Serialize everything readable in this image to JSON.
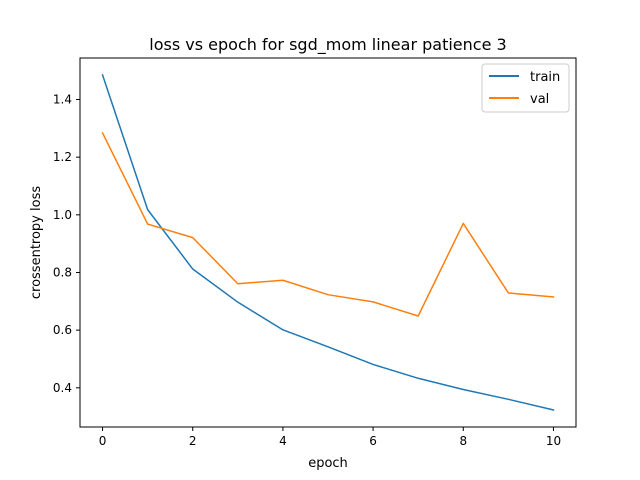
{
  "chart_data": {
    "type": "line",
    "title": "loss vs epoch for sgd_mom linear patience 3",
    "xlabel": "epoch",
    "ylabel": "crossentropy loss",
    "x": [
      0,
      1,
      2,
      3,
      4,
      5,
      6,
      7,
      8,
      9,
      10
    ],
    "xlim": [
      -0.5,
      10.5
    ],
    "ylim": [
      0.264,
      1.544
    ],
    "xticks": [
      0,
      2,
      4,
      6,
      8,
      10
    ],
    "yticks": [
      0.4,
      0.6,
      0.8,
      1.0,
      1.2,
      1.4
    ],
    "xtick_labels": [
      "0",
      "2",
      "4",
      "6",
      "8",
      "10"
    ],
    "ytick_labels": [
      "0.4",
      "0.6",
      "0.8",
      "1.0",
      "1.2",
      "1.4"
    ],
    "grid": false,
    "legend_position": "top-right",
    "series": [
      {
        "name": "train",
        "color": "#1f77b4",
        "values": [
          1.485,
          1.018,
          0.812,
          0.697,
          0.601,
          0.542,
          0.481,
          0.433,
          0.394,
          0.36,
          0.323
        ]
      },
      {
        "name": "val",
        "color": "#ff7f0e",
        "values": [
          1.284,
          0.968,
          0.921,
          0.761,
          0.773,
          0.723,
          0.698,
          0.649,
          0.97,
          0.729,
          0.715
        ]
      }
    ]
  }
}
